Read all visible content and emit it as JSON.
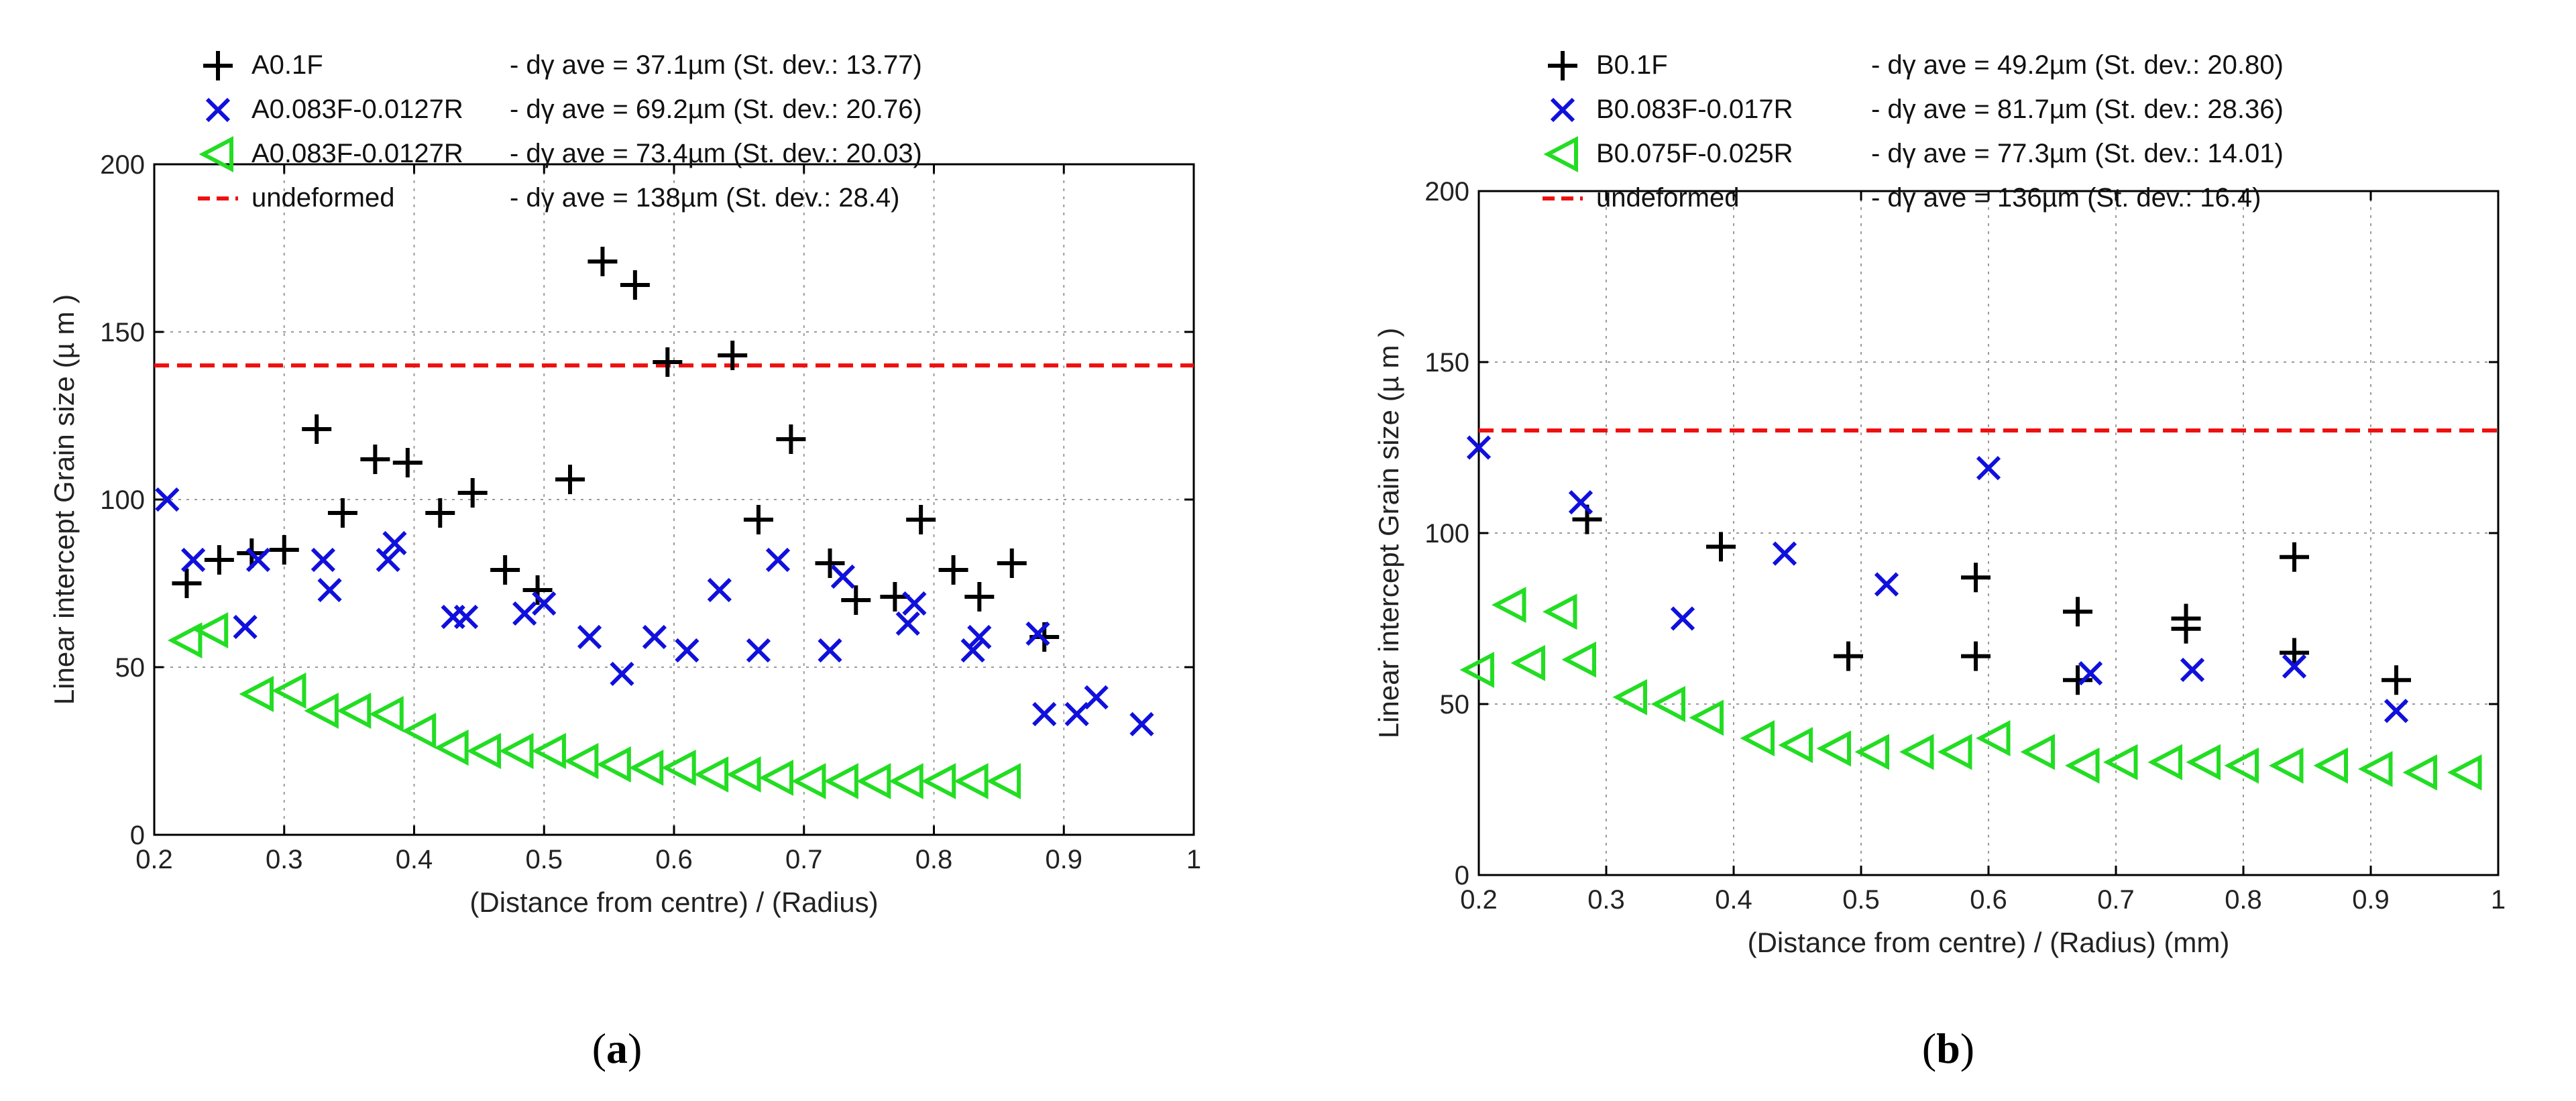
{
  "chart_data": [
    {
      "type": "scatter",
      "panel_label": "a",
      "xlabel": "(Distance from centre) / (Radius)",
      "ylabel": "Linear intercept Grain size (µ m )",
      "xlim": [
        0.2,
        1
      ],
      "ylim": [
        0,
        200
      ],
      "xticks": [
        "0.2",
        "0.3",
        "0.4",
        "0.5",
        "0.6",
        "0.7",
        "0.8",
        "0.9",
        "1"
      ],
      "yticks": [
        "0",
        "50",
        "100",
        "150",
        "200"
      ],
      "grid": true,
      "series": [
        {
          "name": "A0.1F",
          "desc": "- dγ ave = 37.1µm (St. dev.: 13.77)",
          "marker": "plus",
          "color": "#000000",
          "x": [
            0.225,
            0.25,
            0.275,
            0.3,
            0.325,
            0.345,
            0.37,
            0.395,
            0.42,
            0.445,
            0.47,
            0.495,
            0.52,
            0.545,
            0.57,
            0.595,
            0.645,
            0.665,
            0.69,
            0.72,
            0.74,
            0.77,
            0.79,
            0.815,
            0.835,
            0.86,
            0.885
          ],
          "y": [
            75,
            82,
            84,
            85,
            121,
            96,
            112,
            111,
            96,
            102,
            79,
            73,
            106,
            171,
            164,
            141,
            143,
            94,
            118,
            81,
            70,
            71,
            94,
            79,
            71,
            81,
            59
          ]
        },
        {
          "name": "A0.083F-0.0127R",
          "desc": "- dγ ave = 69.2µm (St. dev.: 20.76)",
          "marker": "x",
          "color": "#1010dd",
          "x": [
            0.21,
            0.23,
            0.27,
            0.28,
            0.33,
            0.335,
            0.38,
            0.385,
            0.43,
            0.44,
            0.485,
            0.5,
            0.535,
            0.56,
            0.585,
            0.61,
            0.635,
            0.665,
            0.68,
            0.72,
            0.73,
            0.78,
            0.785,
            0.83,
            0.835,
            0.88,
            0.885,
            0.91,
            0.925,
            0.96
          ],
          "y": [
            100,
            82,
            62,
            82,
            82,
            73,
            82,
            87,
            65,
            65,
            66,
            69,
            59,
            48,
            59,
            55,
            73,
            55,
            82,
            55,
            77,
            63,
            69,
            55,
            59,
            60,
            36,
            36,
            41,
            33
          ]
        },
        {
          "name": "A0.083F-0.0127R",
          "desc": "- dγ ave = 73.4µm (St. dev.: 20.03)",
          "marker": "triangle-left",
          "color": "#22dd22",
          "x": [
            0.225,
            0.245,
            0.28,
            0.305,
            0.33,
            0.355,
            0.38,
            0.405,
            0.43,
            0.455,
            0.48,
            0.505,
            0.53,
            0.555,
            0.58,
            0.605,
            0.63,
            0.655,
            0.68,
            0.705,
            0.73,
            0.755,
            0.78,
            0.805,
            0.83,
            0.855
          ],
          "y": [
            58,
            61,
            42,
            43,
            37,
            37,
            36,
            31,
            26,
            25,
            25,
            25,
            22,
            21,
            20,
            20,
            18,
            18,
            17,
            16,
            16,
            16,
            16,
            16,
            16,
            16
          ]
        },
        {
          "name": "undeformed",
          "desc": "- dγ ave = 138µm (St. dev.: 28.4)",
          "marker": "dashed-line",
          "color": "#ee1111",
          "y_const": 140
        }
      ]
    },
    {
      "type": "scatter",
      "panel_label": "b",
      "xlabel": "(Distance from centre) / (Radius) (mm)",
      "ylabel": "Linear intercept Grain size (µ m )",
      "xlim": [
        0.2,
        1
      ],
      "ylim": [
        0,
        200
      ],
      "xticks": [
        "0.2",
        "0.3",
        "0.4",
        "0.5",
        "0.6",
        "0.7",
        "0.8",
        "0.9",
        "1"
      ],
      "yticks": [
        "0",
        "50",
        "100",
        "150",
        "200"
      ],
      "grid": true,
      "series": [
        {
          "name": "B0.1F",
          "desc": "- dγ ave = 49.2µm (St. dev.: 20.80)",
          "marker": "plus",
          "color": "#000000",
          "x": [
            0.285,
            0.39,
            0.49,
            0.59,
            0.59,
            0.67,
            0.67,
            0.755,
            0.755,
            0.84,
            0.84,
            0.92
          ],
          "y": [
            104,
            96,
            64,
            87,
            64,
            77,
            57,
            75,
            72,
            93,
            65,
            57
          ]
        },
        {
          "name": "B0.083F-0.017R",
          "desc": "- dγ ave = 81.7µm (St. dev.: 28.36)",
          "marker": "x",
          "color": "#1010dd",
          "x": [
            0.2,
            0.28,
            0.36,
            0.44,
            0.52,
            0.6,
            0.68,
            0.76,
            0.84,
            0.92
          ],
          "y": [
            125,
            109,
            75,
            94,
            85,
            119,
            59,
            60,
            61,
            48
          ]
        },
        {
          "name": "B0.075F-0.025R",
          "desc": "- dγ ave = 77.3µm (St. dev.: 14.01)",
          "marker": "triangle-left",
          "color": "#22dd22",
          "x": [
            0.2,
            0.225,
            0.24,
            0.265,
            0.28,
            0.32,
            0.35,
            0.38,
            0.42,
            0.45,
            0.48,
            0.51,
            0.545,
            0.575,
            0.605,
            0.64,
            0.675,
            0.705,
            0.74,
            0.77,
            0.8,
            0.835,
            0.87,
            0.905,
            0.94,
            0.975
          ],
          "y": [
            60,
            79,
            62,
            77,
            63,
            52,
            50,
            46,
            40,
            38,
            37,
            36,
            36,
            36,
            40,
            36,
            32,
            33,
            33,
            33,
            32,
            32,
            32,
            31,
            30,
            30
          ]
        },
        {
          "name": "undeformed",
          "desc": "- dγ ave = 136µm (St. dev.: 16.4)",
          "marker": "dashed-line",
          "color": "#ee1111",
          "y_const": 130
        }
      ]
    }
  ]
}
